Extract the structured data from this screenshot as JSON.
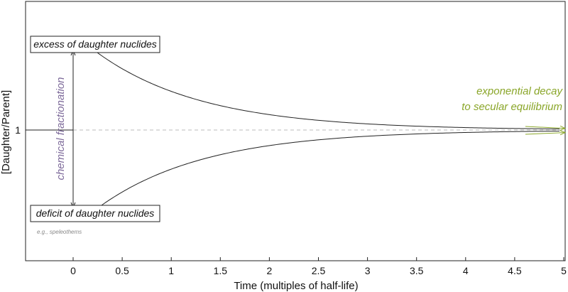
{
  "y_axis_title": "[Daughter/Parent]",
  "y_tick_label": "1",
  "x_axis_title": "Time (multiples of half-life)",
  "x_ticks": [
    "0",
    "0.5",
    "1",
    "1.5",
    "2",
    "2.5",
    "3",
    "3.5",
    "4",
    "4.5",
    "5"
  ],
  "excess_label": "excess of daughter nuclides",
  "deficit_label": "deficit of daughter nuclides",
  "example_label": "e.g., speleothems",
  "fractionation_label": "chemical fractionation",
  "decay_label_line1": "exponential decay",
  "decay_label_line2": "to secular equilibrium",
  "colors": {
    "decay": "#8aa629",
    "fractionation": "#7d6a9a",
    "curve": "#222222",
    "equilibrium": "#bbbbbb"
  }
}
